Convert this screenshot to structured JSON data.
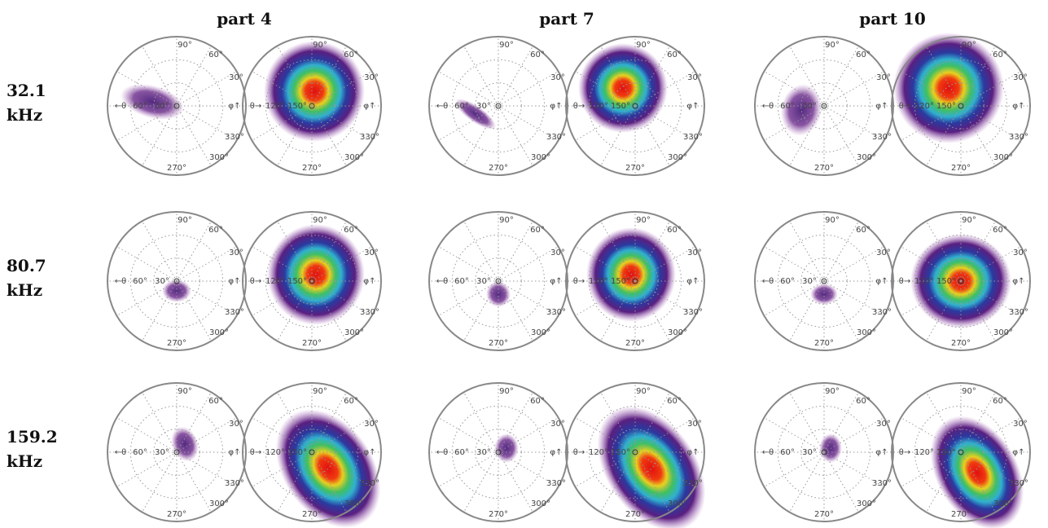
{
  "columns": [
    "part 4",
    "part 7",
    "part 10"
  ],
  "rows": [
    {
      "value": "32.1",
      "unit": "kHz"
    },
    {
      "value": "80.7",
      "unit": "kHz"
    },
    {
      "value": "159.2",
      "unit": "kHz"
    }
  ],
  "polar_labels": {
    "left": {
      "top": "90°",
      "a60": "60°",
      "a30": "30°",
      "phi": "φ↑",
      "a330": "330°",
      "a300": "300°",
      "bottom": "270°",
      "theta": "←θ",
      "inner1": "60°",
      "inner2": "30°"
    },
    "right": {
      "top": "90°",
      "a60": "60°",
      "a30": "30°",
      "phi": "φ↑",
      "a330": "330°",
      "a300": "300°",
      "bottom": "270°",
      "theta": "θ→",
      "inner1": "120°",
      "inner2": "150°"
    }
  }
}
